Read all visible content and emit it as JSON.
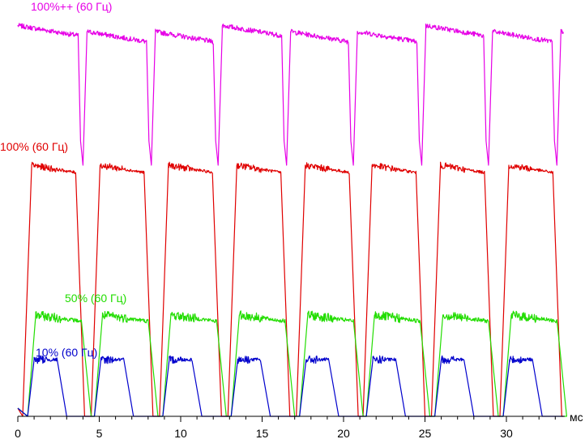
{
  "chart_data": {
    "type": "line",
    "title": "",
    "xlabel": "мс",
    "ylabel": "",
    "xlim": [
      0,
      34
    ],
    "x_ticks": [
      0,
      5,
      10,
      15,
      20,
      25,
      30
    ],
    "x_tick_labels": [
      "0",
      "5",
      "10",
      "15",
      "20",
      "25",
      "30"
    ],
    "x_unit": "мс",
    "grid": false,
    "legend": "inline labels",
    "period_ms": 4.17,
    "series": [
      {
        "name": "100%++ (60 Гц)",
        "color": "#e600e6",
        "baseline_level": 0.95,
        "dip_level": 0.62,
        "pulse_starts_ms": [
          3.7,
          7.9,
          12.0,
          16.2,
          20.3,
          24.5,
          28.6,
          32.8
        ]
      },
      {
        "name": "100% (60 Гц)",
        "color": "#e00000",
        "high_level": 0.62,
        "low_level": 0.0,
        "pulse_starts_ms": [
          0.3,
          4.5,
          8.7,
          12.9,
          17.1,
          21.2,
          25.4,
          29.6
        ]
      },
      {
        "name": "50% (60 Гц)",
        "color": "#22dd00",
        "high_level": 0.25,
        "low_level": 0.0,
        "pulse_starts_ms": [
          0.6,
          4.7,
          8.9,
          13.1,
          17.3,
          21.4,
          25.6,
          29.8
        ]
      },
      {
        "name": "10% (60 Гц)",
        "color": "#0000cc",
        "high_level": 0.14,
        "low_level": 0.0,
        "pulse_starts_ms": [
          0.6,
          4.7,
          8.9,
          13.1,
          17.3,
          21.4,
          25.6,
          29.8
        ]
      }
    ]
  }
}
